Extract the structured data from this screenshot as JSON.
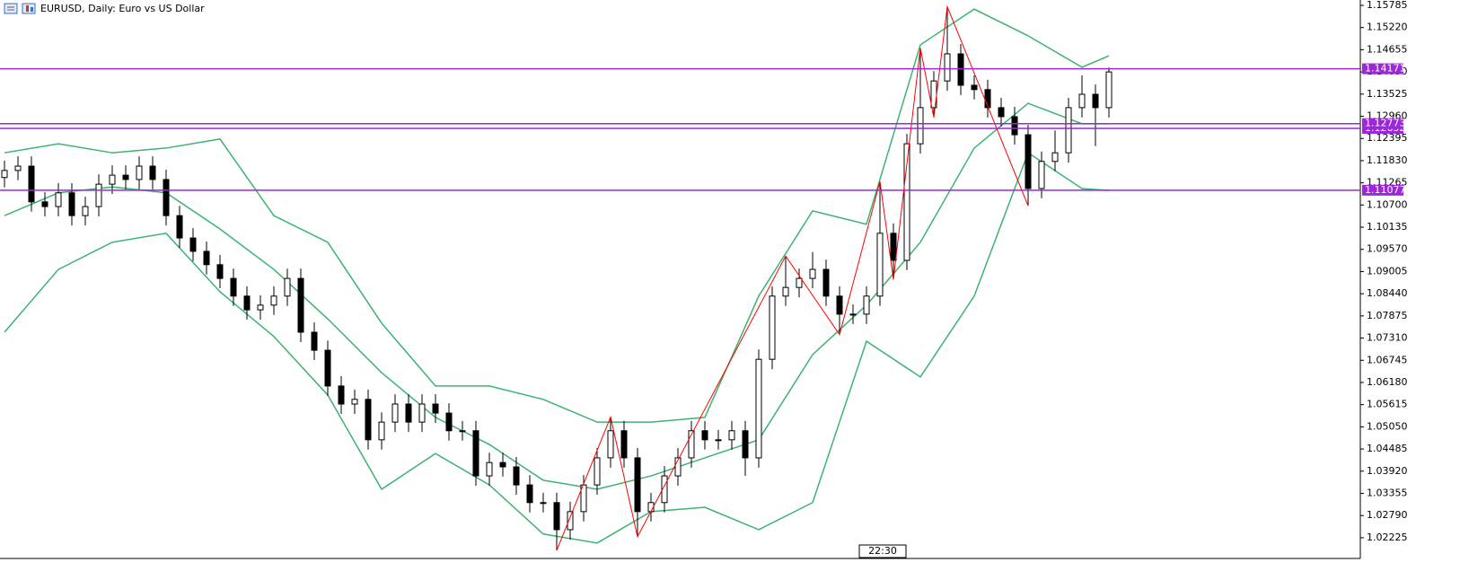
{
  "chart_data": {
    "type": "candlestick",
    "title": "EURUSD, Daily:  Euro vs US Dollar",
    "time_label": "22:30",
    "ylim": [
      1.01697,
      1.15922
    ],
    "yticks": [
      1.15785,
      {
        "value": 1.1522,
        "label": "1.15220"
      },
      1.14655,
      {
        "value": 1.1409,
        "label": "1.14090"
      },
      1.13525,
      {
        "value": 1.1296,
        "label": "1.12960"
      },
      1.12395,
      {
        "value": 1.1183,
        "label": "1.11830"
      },
      1.11265,
      {
        "value": 1.107,
        "label": "1.10700"
      },
      1.10135,
      {
        "value": 1.0957,
        "label": "1.09570"
      },
      1.09005,
      {
        "value": 1.0844,
        "label": "1.08440"
      },
      1.07875,
      {
        "value": 1.0731,
        "label": "1.07310"
      },
      1.06745,
      {
        "value": 1.0618,
        "label": "1.06180"
      },
      1.05615,
      {
        "value": 1.0505,
        "label": "1.05050"
      },
      1.04485,
      {
        "value": 1.0392,
        "label": "1.03920"
      },
      1.03355,
      {
        "value": 1.0279,
        "label": "1.02790"
      },
      1.02225
    ],
    "candles": {
      "up_color": "#ffffff",
      "down_color": "#000000",
      "open": [
        1.114,
        1.1158,
        1.1169,
        1.1078,
        1.1066,
        1.1101,
        1.1043,
        1.1066,
        1.1123,
        1.1146,
        1.1135,
        1.1169,
        1.1135,
        1.1043,
        1.0986,
        1.0952,
        1.0918,
        1.0883,
        1.0838,
        1.0803,
        1.0815,
        1.0838,
        1.0883,
        1.0746,
        1.07,
        1.0609,
        1.0563,
        1.0575,
        1.0472,
        1.0517,
        1.0563,
        1.0517,
        1.0563,
        1.054,
        1.0495,
        1.0495,
        1.038,
        1.0414,
        1.0403,
        1.0357,
        1.0312,
        1.0312,
        1.0243,
        1.0289,
        1.0357,
        1.0426,
        1.0495,
        1.0426,
        1.0289,
        1.0312,
        1.038,
        1.0426,
        1.0495,
        1.0472,
        1.0472,
        1.0495,
        1.0426,
        1.0677,
        1.0838,
        1.086,
        1.0883,
        1.0906,
        1.0838,
        1.0792,
        1.0792,
        1.0838,
        1.0998,
        1.0929,
        1.1226,
        1.1318,
        1.1386,
        1.1455,
        1.1375,
        1.1364,
        1.1318,
        1.1295,
        1.1249,
        1.1112,
        1.1181,
        1.1203,
        1.1318,
        1.1352,
        1.1318
      ],
      "high": [
        1.1183,
        1.1194,
        1.1194,
        1.1103,
        1.1126,
        1.1126,
        1.1091,
        1.1148,
        1.1171,
        1.1171,
        1.1194,
        1.1194,
        1.116,
        1.1068,
        1.1011,
        1.0977,
        1.0943,
        1.0908,
        1.0863,
        1.084,
        1.0863,
        1.0908,
        1.0908,
        1.0771,
        1.0725,
        1.0634,
        1.06,
        1.06,
        1.0542,
        1.0588,
        1.0588,
        1.0588,
        1.0588,
        1.0565,
        1.052,
        1.052,
        1.0439,
        1.0439,
        1.0428,
        1.0382,
        1.0337,
        1.0337,
        1.0314,
        1.0382,
        1.0451,
        1.053,
        1.052,
        1.0451,
        1.0337,
        1.0405,
        1.0451,
        1.052,
        1.052,
        1.0497,
        1.052,
        1.052,
        1.0702,
        1.0863,
        1.094,
        1.0908,
        1.095,
        1.0931,
        1.0863,
        1.0817,
        1.0863,
        1.113,
        1.1023,
        1.1251,
        1.147,
        1.1411,
        1.1575,
        1.148,
        1.14,
        1.1389,
        1.1343,
        1.132,
        1.1274,
        1.1206,
        1.126,
        1.1343,
        1.14,
        1.1377,
        1.142
      ],
      "low": [
        1.1115,
        1.1133,
        1.1053,
        1.1041,
        1.1041,
        1.1018,
        1.1018,
        1.1041,
        1.1098,
        1.111,
        1.111,
        1.111,
        1.1018,
        1.0961,
        1.0927,
        1.0893,
        1.0858,
        1.0813,
        1.0778,
        1.0778,
        1.079,
        1.0813,
        1.0721,
        1.0675,
        1.0584,
        1.0538,
        1.0538,
        1.0447,
        1.0447,
        1.0492,
        1.0492,
        1.0492,
        1.0515,
        1.047,
        1.047,
        1.0355,
        1.0355,
        1.0378,
        1.0332,
        1.0287,
        1.0287,
        1.019,
        1.0218,
        1.0264,
        1.0332,
        1.0401,
        1.0401,
        1.0225,
        1.0264,
        1.0287,
        1.0355,
        1.0401,
        1.0447,
        1.0447,
        1.0447,
        1.038,
        1.0401,
        1.0652,
        1.0813,
        1.0835,
        1.0858,
        1.0813,
        1.074,
        1.0767,
        1.0767,
        1.0813,
        1.088,
        1.0904,
        1.1201,
        1.1293,
        1.1361,
        1.135,
        1.1339,
        1.1293,
        1.127,
        1.1224,
        1.1068,
        1.1087,
        1.1156,
        1.1178,
        1.1293,
        1.122,
        1.1293
      ],
      "close": [
        1.1158,
        1.1169,
        1.1078,
        1.1066,
        1.1101,
        1.1043,
        1.1066,
        1.1123,
        1.1146,
        1.1135,
        1.1169,
        1.1135,
        1.1043,
        1.0986,
        1.0952,
        1.0918,
        1.0883,
        1.0838,
        1.0803,
        1.0815,
        1.0838,
        1.0883,
        1.0746,
        1.07,
        1.0609,
        1.0563,
        1.0575,
        1.0472,
        1.0517,
        1.0563,
        1.0517,
        1.0563,
        1.054,
        1.0495,
        1.0495,
        1.038,
        1.0414,
        1.0403,
        1.0357,
        1.0312,
        1.0312,
        1.0243,
        1.0289,
        1.0357,
        1.0426,
        1.0495,
        1.0426,
        1.0289,
        1.0312,
        1.038,
        1.0426,
        1.0495,
        1.0472,
        1.0472,
        1.0495,
        1.0426,
        1.0677,
        1.0838,
        1.086,
        1.0883,
        1.0906,
        1.0838,
        1.0792,
        1.0792,
        1.0838,
        1.0998,
        1.0929,
        1.1226,
        1.1318,
        1.1386,
        1.1455,
        1.1375,
        1.1364,
        1.1318,
        1.1295,
        1.1249,
        1.1112,
        1.1181,
        1.1203,
        1.1318,
        1.1352,
        1.1318,
        1.1409
      ]
    },
    "bands": {
      "color": "#3cb371",
      "x": [
        0,
        4,
        8,
        12,
        16,
        20,
        24,
        28,
        32,
        36,
        40,
        44,
        48,
        52,
        56,
        60,
        64,
        68,
        72,
        76,
        80,
        82
      ],
      "upper": [
        1.1203,
        1.1226,
        1.1203,
        1.1215,
        1.1238,
        1.1043,
        1.0975,
        1.0769,
        1.0609,
        1.0609,
        1.0575,
        1.0517,
        1.0517,
        1.0529,
        1.0838,
        1.1055,
        1.1021,
        1.1478,
        1.1569,
        1.1501,
        1.1421,
        1.145
      ],
      "middle": [
        1.1043,
        1.1101,
        1.1116,
        1.1101,
        1.1009,
        1.0906,
        1.078,
        1.0643,
        1.0529,
        1.046,
        1.0369,
        1.0346,
        1.038,
        1.0426,
        1.0472,
        1.0689,
        1.0815,
        1.0975,
        1.1215,
        1.1329,
        1.1277,
        1.1277
      ],
      "lower": [
        1.0746,
        1.0906,
        1.0975,
        1.0998,
        1.0849,
        1.0735,
        1.0586,
        1.0346,
        1.0437,
        1.0357,
        1.0232,
        1.0209,
        1.0289,
        1.03,
        1.0243,
        1.0312,
        1.0723,
        1.0632,
        1.0838,
        1.1203,
        1.1112,
        1.1107
      ]
    },
    "zigzag": {
      "color": "#ff0000",
      "x": [
        41,
        45,
        47,
        58,
        62,
        65,
        66,
        68,
        69,
        70,
        76
      ],
      "values": [
        1.019,
        1.053,
        1.0225,
        1.094,
        1.074,
        1.113,
        1.088,
        1.147,
        1.1293,
        1.1575,
        1.1068
      ]
    },
    "levels": {
      "color": "#9c27d8",
      "values": [
        1.12652,
        1.14171,
        1.12773,
        1.11077
      ]
    }
  }
}
